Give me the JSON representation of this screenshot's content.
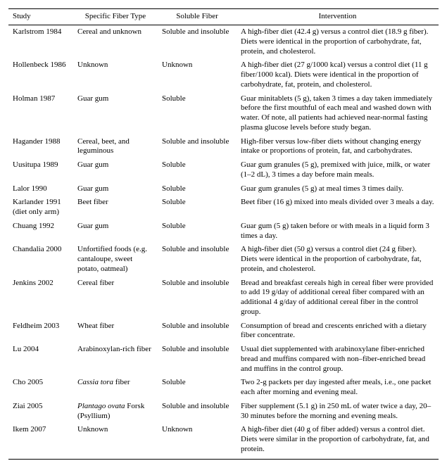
{
  "headers": {
    "study": "Study",
    "fiber_type": "Specific Fiber Type",
    "soluble": "Soluble Fiber",
    "intervention": "Intervention"
  },
  "rows": [
    {
      "study": "Karlstrom 1984",
      "fiber_type": "Cereal and unknown",
      "soluble": "Soluble and insoluble",
      "intervention": "A high-fiber diet (42.4 g) versus a control diet (18.9 g fiber). Diets were identical in the proportion of carbohydrate, fat, protein, and cholesterol."
    },
    {
      "study": "Hollenbeck 1986",
      "fiber_type": "Unknown",
      "soluble": "Unknown",
      "intervention": "A high-fiber diet (27 g/1000 kcal) versus a control diet (11 g fiber/1000 kcal). Diets were identical in the proportion of carbohydrate, fat, protein, and cholesterol."
    },
    {
      "study": "Holman 1987",
      "fiber_type": "Guar gum",
      "soluble": "Soluble",
      "intervention": "Guar minitablets (5 g), taken 3 times a day taken immediately before the first mouthful of each meal and washed down with water. Of note, all patients had achieved near-normal fasting plasma glucose levels before study began."
    },
    {
      "study": "Hagander 1988",
      "fiber_type": "Cereal, beet, and leguminous",
      "soluble": "Soluble and insoluble",
      "intervention": "High-fiber versus low-fiber diets without changing energy intake or proportions of protein, fat, and carbohydrates."
    },
    {
      "study": "Uusitupa 1989",
      "fiber_type": "Guar gum",
      "soluble": "Soluble",
      "intervention": "Guar gum granules (5 g), premixed with juice, milk, or water (1–2 dL), 3 times a day before main meals."
    },
    {
      "study": "Lalor 1990",
      "fiber_type": "Guar gum",
      "soluble": "Soluble",
      "intervention": "Guar gum granules (5 g) at meal times 3 times daily."
    },
    {
      "study": "Karlander 1991 (diet only arm)",
      "fiber_type": "Beet fiber",
      "soluble": "Soluble",
      "intervention": "Beet fiber (16 g) mixed into meals divided over 3 meals a day."
    },
    {
      "study": "Chuang 1992",
      "fiber_type": "Guar gum",
      "soluble": "Soluble",
      "intervention": "Guar gum (5 g) taken before or with meals in a liquid form 3 times a day."
    },
    {
      "study": "Chandalia 2000",
      "fiber_type": "Unfortified foods (e.g. cantaloupe, sweet potato, oatmeal)",
      "soluble": "Soluble and insoluble",
      "intervention": "A high-fiber diet (50 g) versus a control diet (24 g fiber). Diets were identical in the proportion of carbohydrate, fat, protein, and cholesterol."
    },
    {
      "study": "Jenkins 2002",
      "fiber_type": "Cereal fiber",
      "soluble": "Soluble and insoluble",
      "intervention": "Bread and breakfast cereals high in cereal fiber were provided to add 19 g/day of additional cereal fiber compared with an additional 4 g/day of additional cereal fiber in the control group."
    },
    {
      "study": "Feldheim 2003",
      "fiber_type": "Wheat fiber",
      "soluble": "Soluble and insoluble",
      "intervention": "Consumption of bread and crescents enriched with a dietary fiber concentrate."
    },
    {
      "study": "Lu 2004",
      "fiber_type": "Arabinoxylan-rich fiber",
      "soluble": "Soluble and insoluble",
      "intervention": "Usual diet supplemented with arabinoxylane fiber-enriched bread and muffins compared with non–fiber-enriched bread and muffins in the control group."
    },
    {
      "study": "Cho 2005",
      "fiber_type_html": "<em class=\"genus\">Cassia tora</em> fiber",
      "fiber_type": "Cassia tora fiber",
      "soluble": "Soluble",
      "intervention": "Two 2-g packets per day ingested after meals, i.e., one packet each after morning and evening meal."
    },
    {
      "study": "Ziai 2005",
      "fiber_type_html": "<em class=\"genus\">Plantago ovata</em> Forsk (Psyllium)",
      "fiber_type": "Plantago ovata Forsk (Psyllium)",
      "soluble": "Soluble and insoluble",
      "intervention": "Fiber supplement (5.1 g) in 250 mL of water twice a day, 20–30 minutes before the morning and evening meals."
    },
    {
      "study": "Ikem 2007",
      "fiber_type": "Unknown",
      "soluble": "Unknown",
      "intervention": "A high-fiber diet (40 g of fiber added) versus a control diet. Diets were similar in the proportion of carbohydrate, fat, and protein."
    }
  ]
}
